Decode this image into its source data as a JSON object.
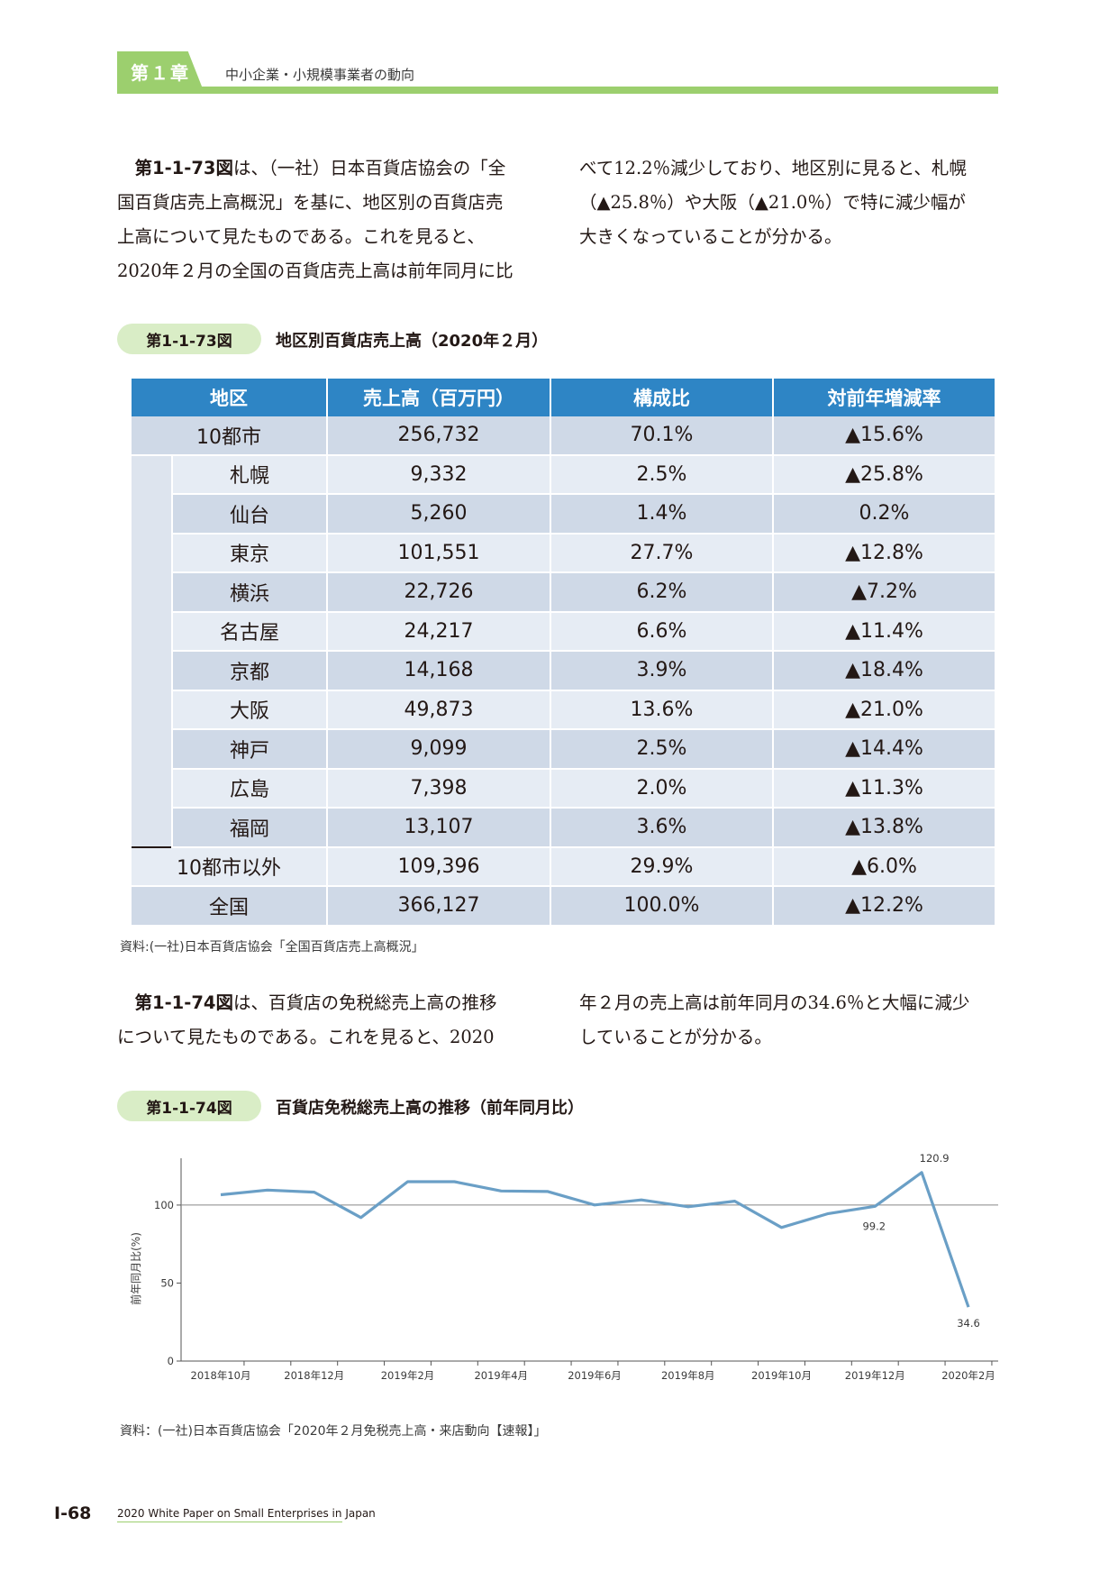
{
  "header": {
    "chapter_label": "第１章",
    "chapter_title": "中小企業・小規模事業者の動向"
  },
  "para1": {
    "fig_ref": "第1-1-73図",
    "col1_line1_rest": "は、（一社）日本百貨店協会の「全",
    "col1_line2": "国百貨店売上高概況」を基に、地区別の百貨店売",
    "col1_line3": "上高について見たものである。これを見ると、",
    "col1_line4": "2020年２月の全国の百貨店売上高は前年同月に比",
    "col2_line1": "べて12.2％減少しており、地区別に見ると、札幌",
    "col2_line2": "（▲25.8％）や大阪（▲21.0％）で特に減少幅が",
    "col2_line3": "大きくなっていることが分かる。"
  },
  "figure1": {
    "label": "第1-1-73図",
    "title": "地区別百貨店売上高（2020年２月）",
    "headers": [
      "地区",
      "売上高（百万円）",
      "構成比",
      "対前年増減率"
    ],
    "total_row": {
      "region": "10都市",
      "sales": "256,732",
      "share": "70.1%",
      "change": "▲15.6%"
    },
    "cities": [
      {
        "region": "札幌",
        "sales": "9,332",
        "share": "2.5%",
        "change": "▲25.8%"
      },
      {
        "region": "仙台",
        "sales": "5,260",
        "share": "1.4%",
        "change": "0.2%"
      },
      {
        "region": "東京",
        "sales": "101,551",
        "share": "27.7%",
        "change": "▲12.8%"
      },
      {
        "region": "横浜",
        "sales": "22,726",
        "share": "6.2%",
        "change": "▲7.2%"
      },
      {
        "region": "名古屋",
        "sales": "24,217",
        "share": "6.6%",
        "change": "▲11.4%"
      },
      {
        "region": "京都",
        "sales": "14,168",
        "share": "3.9%",
        "change": "▲18.4%"
      },
      {
        "region": "大阪",
        "sales": "49,873",
        "share": "13.6%",
        "change": "▲21.0%"
      },
      {
        "region": "神戸",
        "sales": "9,099",
        "share": "2.5%",
        "change": "▲14.4%"
      },
      {
        "region": "広島",
        "sales": "7,398",
        "share": "2.0%",
        "change": "▲11.3%"
      },
      {
        "region": "福岡",
        "sales": "13,107",
        "share": "3.6%",
        "change": "▲13.8%"
      }
    ],
    "other_row": {
      "region": "10都市以外",
      "sales": "109,396",
      "share": "29.9%",
      "change": "▲6.0%"
    },
    "national_row": {
      "region": "全国",
      "sales": "366,127",
      "share": "100.0%",
      "change": "▲12.2%"
    },
    "source": "資料:(一社)日本百貨店協会「全国百貨店売上高概況」"
  },
  "para2": {
    "fig_ref": "第1-1-74図",
    "col1_line1_rest": "は、百貨店の免税総売上高の推移",
    "col1_line2": "について見たものである。これを見ると、2020",
    "col2_line1": "年２月の売上高は前年同月の34.6％と大幅に減少",
    "col2_line2": "していることが分かる。"
  },
  "figure2": {
    "label": "第1-1-74図",
    "title": "百貨店免税総売上高の推移（前年同月比）",
    "source": "資料：(一社)日本百貨店協会「2020年２月免税売上高・来店動向【速報】」"
  },
  "chart_data": {
    "type": "line",
    "ylabel": "前年同月比(%)",
    "ylim": [
      0,
      130
    ],
    "yticks": [
      0,
      50,
      100
    ],
    "reference_line": 100,
    "x_tick_labels": [
      "2018年10月",
      "2018年12月",
      "2019年2月",
      "2019年4月",
      "2019年6月",
      "2019年8月",
      "2019年10月",
      "2019年12月",
      "2020年2月"
    ],
    "x": [
      "2018-10",
      "2018-11",
      "2018-12",
      "2019-01",
      "2019-02",
      "2019-03",
      "2019-04",
      "2019-05",
      "2019-06",
      "2019-07",
      "2019-08",
      "2019-09",
      "2019-10",
      "2019-11",
      "2019-12",
      "2020-01",
      "2020-02"
    ],
    "values": [
      106.6,
      109.6,
      108.3,
      92.0,
      115.0,
      115.0,
      109.0,
      108.7,
      100.1,
      103.3,
      98.9,
      102.5,
      85.6,
      94.5,
      99.2,
      120.9,
      34.6
    ],
    "data_labels": [
      {
        "index": 15,
        "text": "120.9"
      },
      {
        "index": 14,
        "text": "99.2"
      },
      {
        "index": 16,
        "text": "34.6"
      }
    ],
    "line_color": "#6a9fc6"
  },
  "footer": {
    "page": "Ⅰ-68",
    "text": "2020 White Paper on Small Enterprises in Japan"
  }
}
